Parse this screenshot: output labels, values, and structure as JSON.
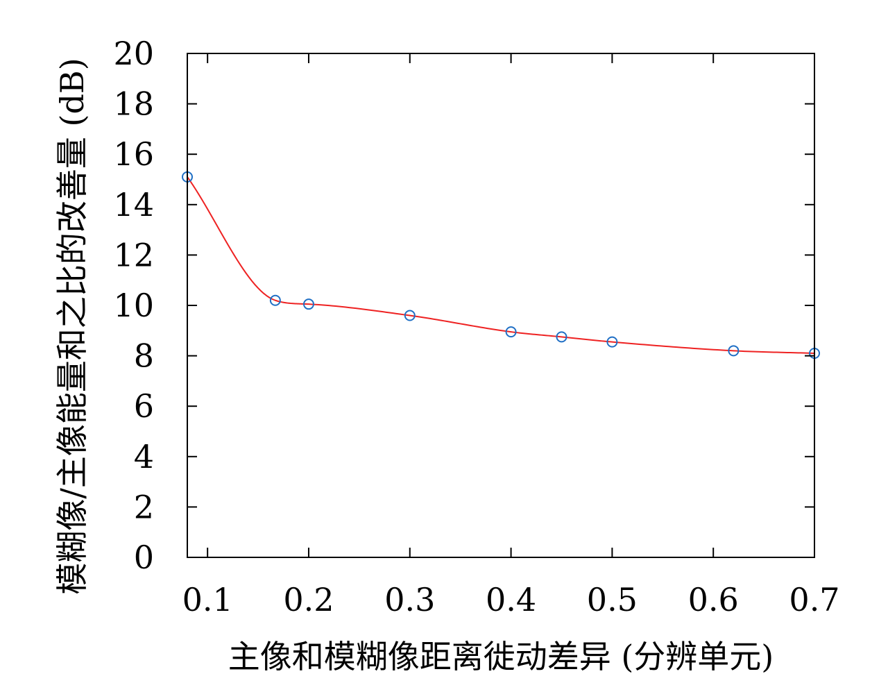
{
  "chart_data": {
    "type": "line",
    "title": "",
    "xlabel": "主像和模糊像距离徙动差异 (分辨单元)",
    "ylabel": "模糊像/主像能量和之比的改善量 (dB)",
    "xlim": [
      0.08,
      0.7
    ],
    "ylim": [
      0,
      20
    ],
    "xticks": [
      "0.1",
      "0.2",
      "0.3",
      "0.4",
      "0.5",
      "0.6",
      "0.7"
    ],
    "xtick_values": [
      0.1,
      0.2,
      0.3,
      0.4,
      0.5,
      0.6,
      0.7
    ],
    "yticks": [
      "0",
      "2",
      "4",
      "6",
      "8",
      "10",
      "12",
      "14",
      "16",
      "18",
      "20"
    ],
    "ytick_values": [
      0,
      2,
      4,
      6,
      8,
      10,
      12,
      14,
      16,
      18,
      20
    ],
    "grid": false,
    "series": [
      {
        "kind": "markers",
        "marker": "open-circle",
        "color": "#1f6fc5",
        "x": [
          0.08,
          0.167,
          0.2,
          0.3,
          0.4,
          0.45,
          0.5,
          0.62,
          0.7
        ],
        "y": [
          15.1,
          10.2,
          10.05,
          9.6,
          8.95,
          8.75,
          8.55,
          8.2,
          8.1
        ]
      },
      {
        "kind": "fitted-curve",
        "color": "#ee2222",
        "x": [
          0.08,
          0.167,
          0.2,
          0.3,
          0.4,
          0.45,
          0.5,
          0.62,
          0.7
        ],
        "y": [
          15.1,
          10.2,
          10.05,
          9.6,
          8.95,
          8.75,
          8.55,
          8.2,
          8.1
        ]
      }
    ]
  }
}
